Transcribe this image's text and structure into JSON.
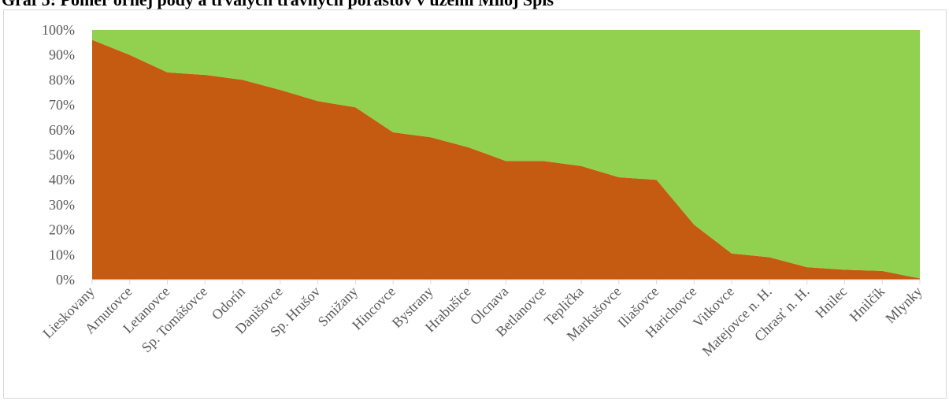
{
  "chart_data": {
    "type": "area",
    "title": "Graf 5: Pomer ornej pôdy a trvalých trávnych porastov v území Miloj Spiš",
    "categories": [
      "Lieskovany",
      "Arnutovce",
      "Letanovce",
      "Sp. Tomášovce",
      "Odorín",
      "Danišovce",
      "Sp. Hrušov",
      "Smižany",
      "Hincovce",
      "Bystrany",
      "Hrabušice",
      "Olcnava",
      "Betlanovce",
      "Teplička",
      "Markušovce",
      "Iliašovce",
      "Harichovce",
      "Vitkovce",
      "Matejovce n. H.",
      "Chrasť n. H.",
      "Hnilec",
      "Hnilčík",
      "Mlynky"
    ],
    "series": [
      {
        "color": "#c55a11",
        "values": [
          96,
          90,
          83,
          82,
          80,
          76,
          71.5,
          69,
          59,
          57,
          53,
          47.5,
          47.5,
          45.5,
          41,
          40,
          22,
          10.5,
          9,
          5,
          4,
          3.5,
          0.5
        ]
      },
      {
        "color": "#92d050",
        "values": [
          4,
          10,
          17,
          18,
          20,
          24,
          28.5,
          31,
          41,
          43,
          47,
          52.5,
          52.5,
          54.5,
          59,
          60,
          78,
          89.5,
          91,
          95,
          96,
          96.5,
          99.5
        ]
      }
    ],
    "stacked": "percent",
    "y_ticks": [
      "0%",
      "10%",
      "20%",
      "30%",
      "40%",
      "50%",
      "60%",
      "70%",
      "80%",
      "90%",
      "100%"
    ],
    "ylim": [
      0,
      100
    ],
    "xlabel": "",
    "ylabel": "",
    "grid": false,
    "legend": "none",
    "axis_color": "#d9d9d9",
    "tick_label_color": "#595959"
  }
}
